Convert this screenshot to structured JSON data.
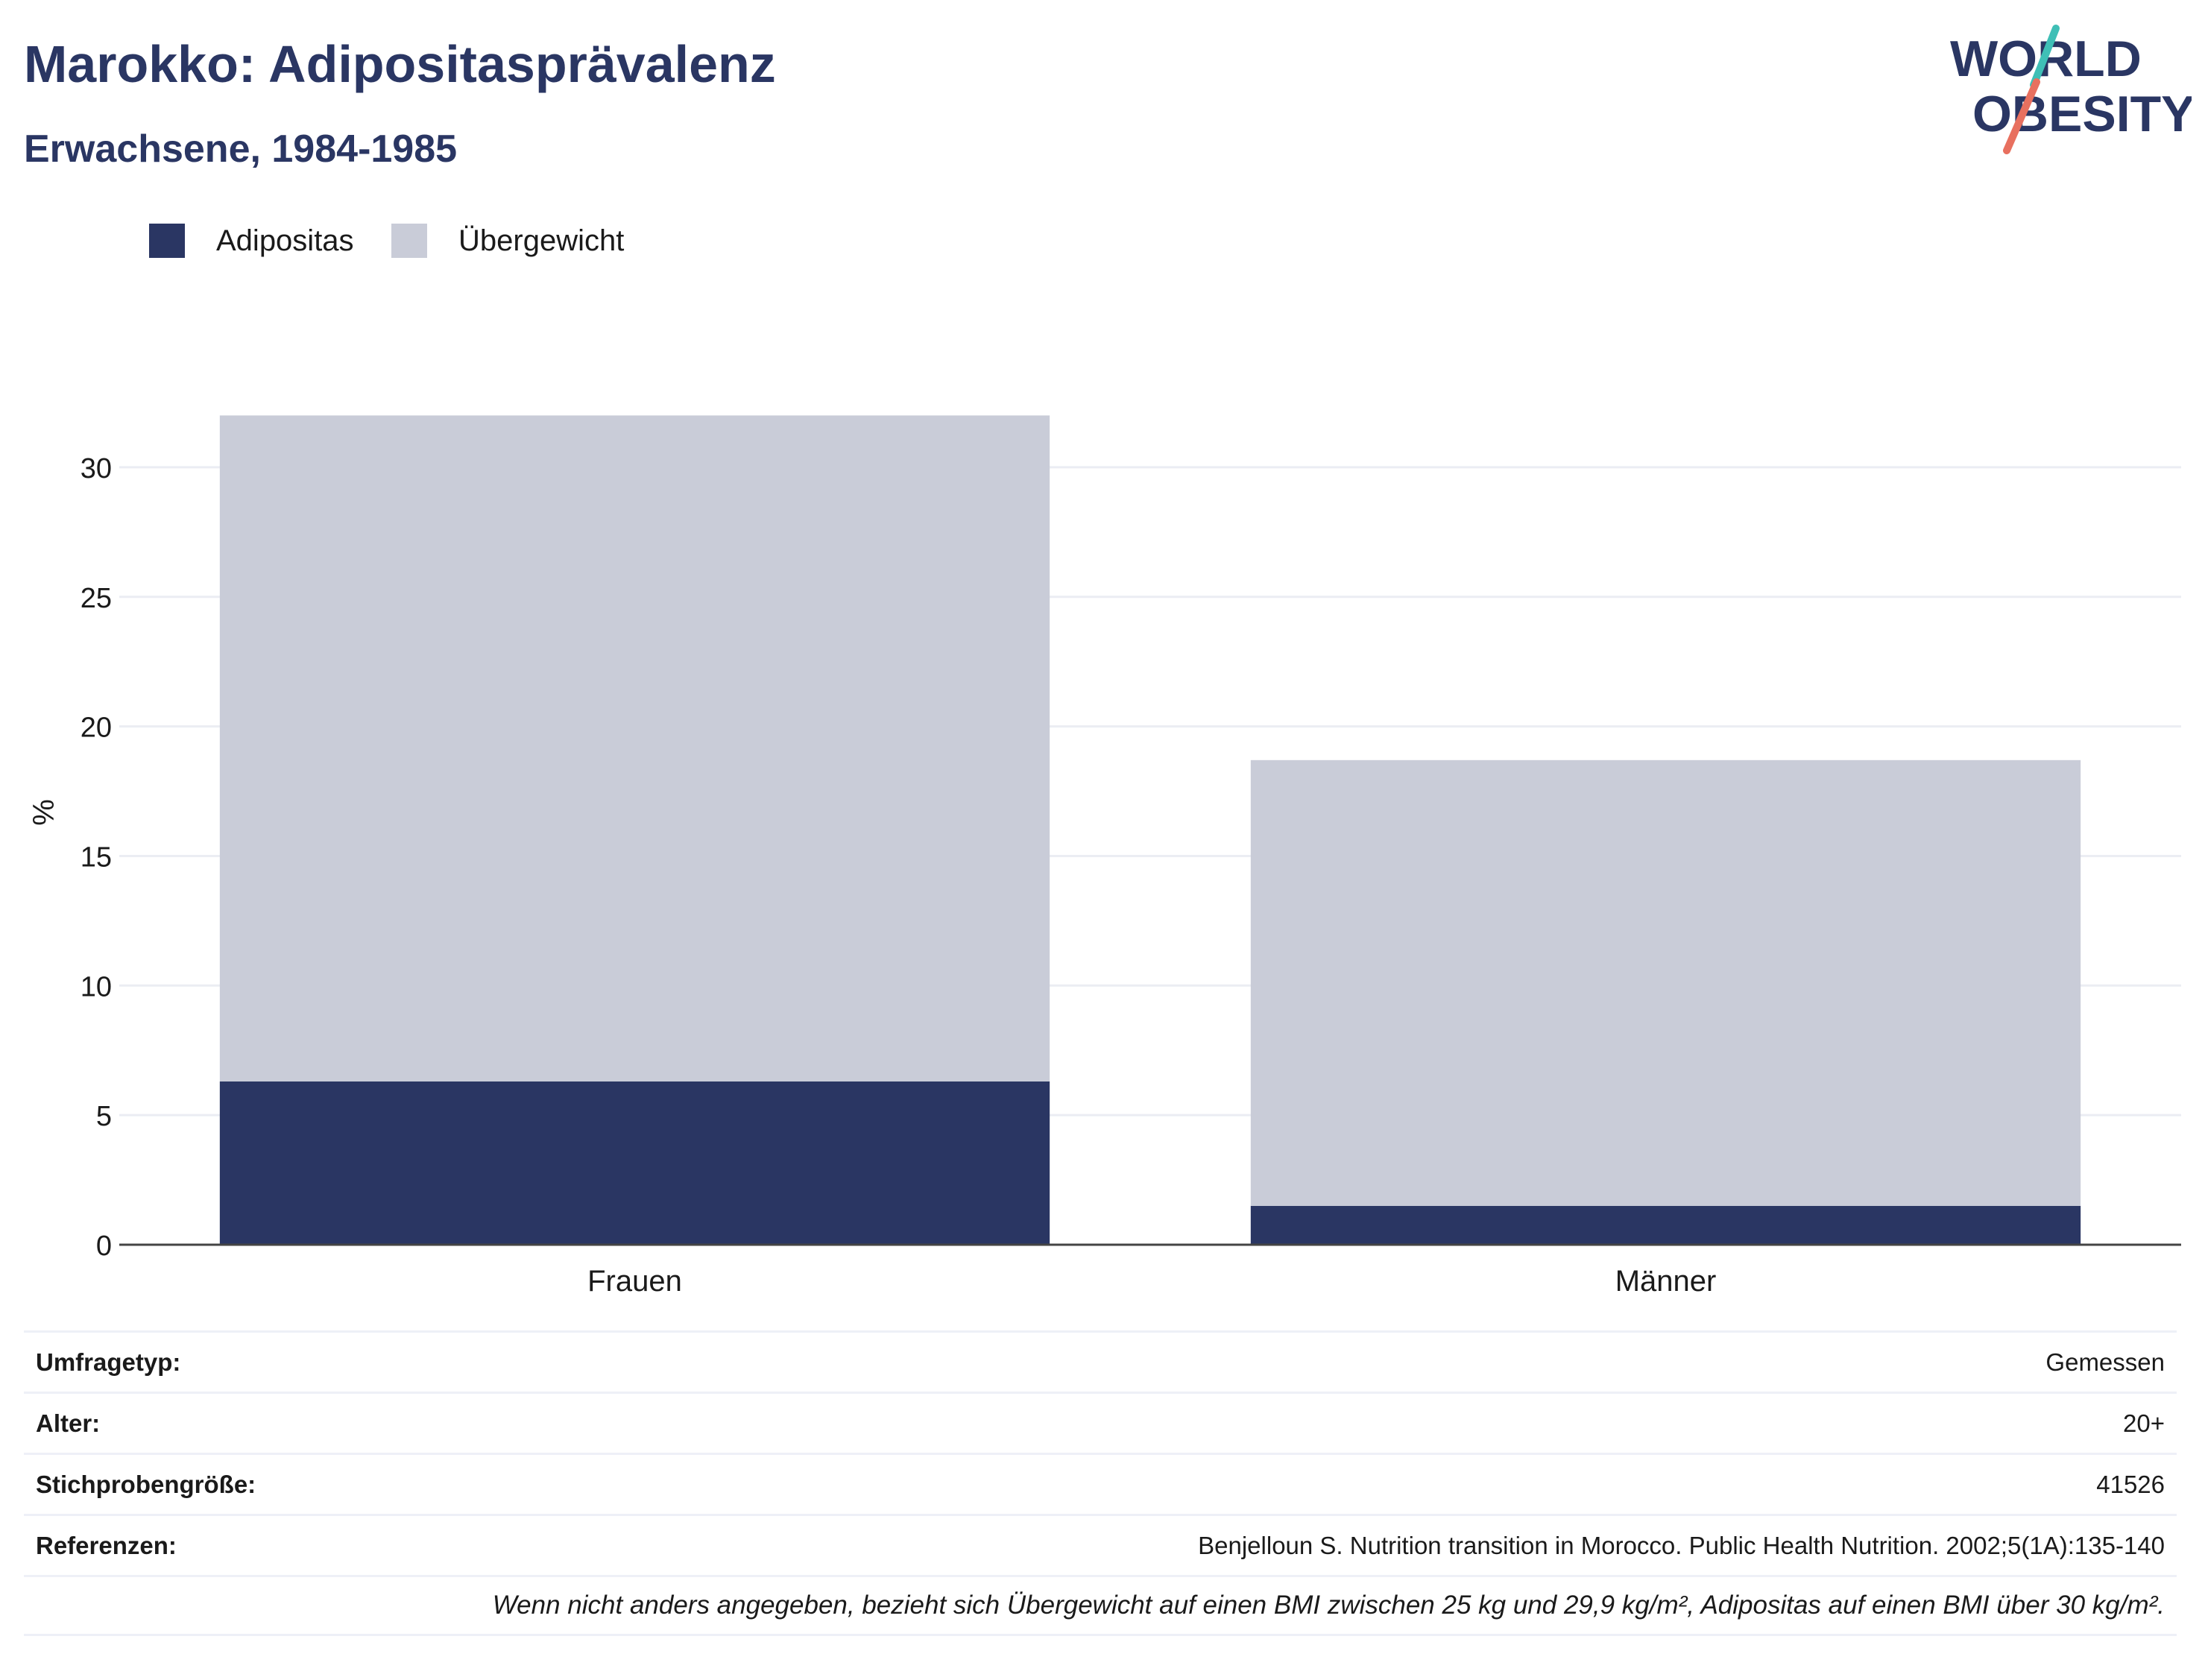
{
  "header": {
    "title": "Marokko: Adipositasprävalenz",
    "subtitle": "Erwachsene, 1984-1985"
  },
  "logo": {
    "line1": "WORLD",
    "line2": "OBESITY",
    "colors": {
      "text": "#2a3663",
      "slash_top": "#3fbfb6",
      "slash_bottom": "#e8705f"
    }
  },
  "legend": {
    "items": [
      {
        "label": "Adipositas",
        "color": "#2a3663"
      },
      {
        "label": "Übergewicht",
        "color": "#c9ccd8"
      }
    ]
  },
  "chart_data": {
    "type": "bar",
    "stacked": true,
    "categories": [
      "Frauen",
      "Männer"
    ],
    "series": [
      {
        "name": "Adipositas",
        "values": [
          6.3,
          1.5
        ],
        "color": "#2a3663"
      },
      {
        "name": "Übergewicht",
        "values": [
          25.7,
          17.2
        ],
        "color": "#c9ccd8"
      }
    ],
    "ylabel": "%",
    "ylim": [
      0,
      32.5
    ],
    "yticks": [
      0,
      5,
      10,
      15,
      20,
      25,
      30
    ],
    "grid": true,
    "legend_position": "top-left"
  },
  "info": {
    "rows": [
      {
        "label": "Umfragetyp:",
        "value": "Gemessen"
      },
      {
        "label": "Alter:",
        "value": "20+"
      },
      {
        "label": "Stichprobengröße:",
        "value": "41526"
      },
      {
        "label": "Referenzen:",
        "value": "Benjelloun S. Nutrition transition in Morocco. Public Health Nutrition. 2002;5(1A):135-140"
      }
    ],
    "note": "Wenn nicht anders angegeben, bezieht sich Übergewicht auf einen BMI zwischen 25 kg und 29,9 kg/m², Adipositas auf einen BMI über 30 kg/m²."
  }
}
